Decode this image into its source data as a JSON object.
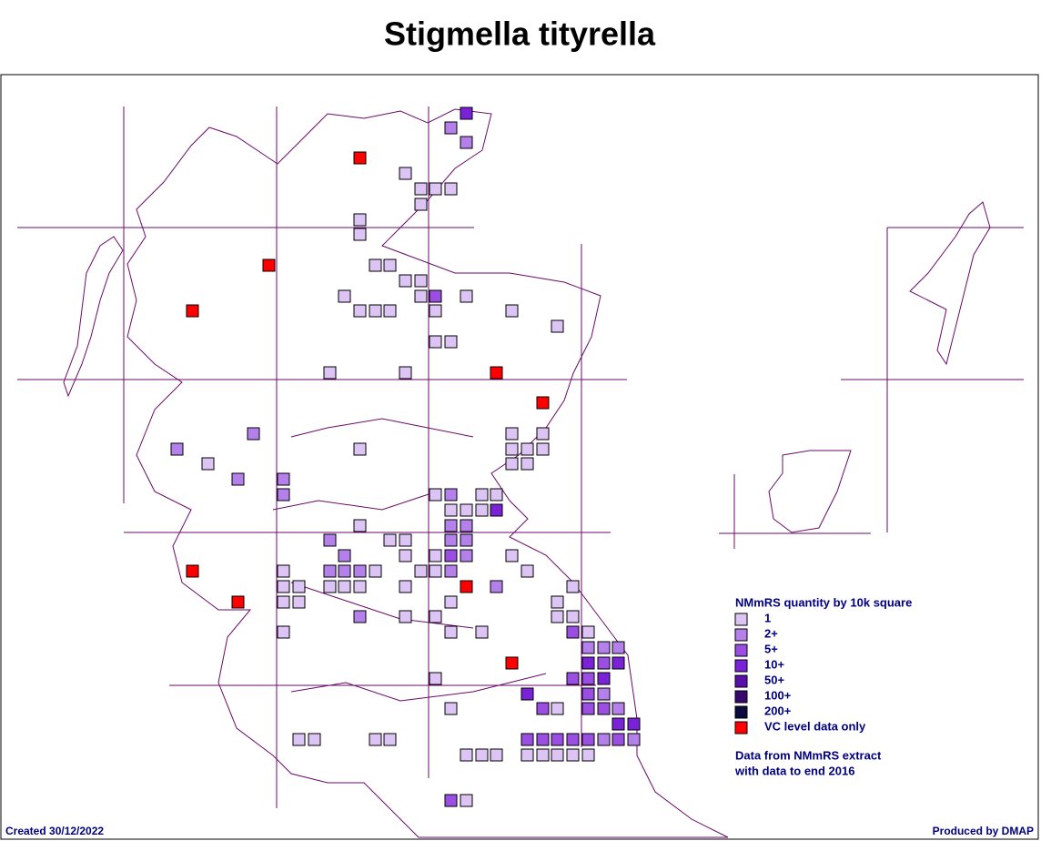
{
  "title": "Stigmella tityrella",
  "legend": {
    "title": "NMmRS quantity by 10k square",
    "items": [
      {
        "label": "1",
        "color": "#dcc4f4"
      },
      {
        "label": "2+",
        "color": "#b480ea"
      },
      {
        "label": "5+",
        "color": "#9a4ee2"
      },
      {
        "label": "10+",
        "color": "#7a22d8"
      },
      {
        "label": "50+",
        "color": "#5a10a8"
      },
      {
        "label": "100+",
        "color": "#38086e"
      },
      {
        "label": "200+",
        "color": "#0a0a40"
      },
      {
        "label": "VC level data only",
        "color": "#ff0000"
      }
    ]
  },
  "note": [
    "Data from NMmRS extract",
    "with data to end 2016"
  ],
  "footer": {
    "created": "Created 30/12/2022",
    "producer": "Produced by DMAP"
  }
}
